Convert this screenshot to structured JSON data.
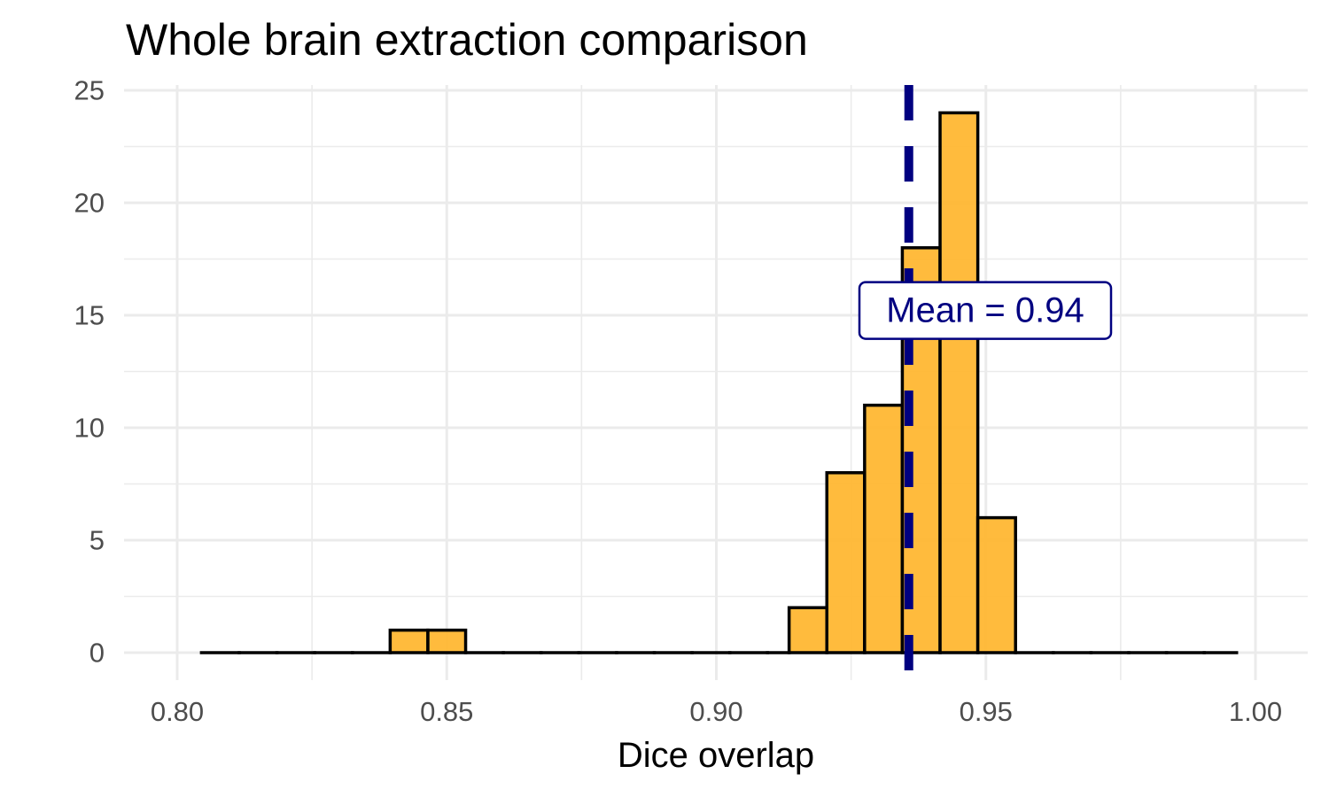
{
  "chart_data": {
    "type": "bar",
    "subtype": "histogram",
    "title": "Whole brain extraction comparison",
    "xlabel": "Dice overlap",
    "ylabel": "",
    "xlim": [
      0.8,
      1.0
    ],
    "ylim": [
      0,
      25
    ],
    "x_ticks": [
      0.8,
      0.85,
      0.9,
      0.95,
      1.0
    ],
    "x_tick_labels": [
      "0.80",
      "0.85",
      "0.90",
      "0.95",
      "1.00"
    ],
    "y_ticks": [
      0,
      5,
      10,
      15,
      20,
      25
    ],
    "y_tick_labels": [
      "0",
      "5",
      "10",
      "15",
      "20",
      "25"
    ],
    "bin_width": 0.007,
    "bins": [
      {
        "x0": 0.8045,
        "x1": 0.8115,
        "count": 0
      },
      {
        "x0": 0.8115,
        "x1": 0.8185,
        "count": 0
      },
      {
        "x0": 0.8185,
        "x1": 0.8255,
        "count": 0
      },
      {
        "x0": 0.8255,
        "x1": 0.8325,
        "count": 0
      },
      {
        "x0": 0.8325,
        "x1": 0.8395,
        "count": 0
      },
      {
        "x0": 0.8395,
        "x1": 0.8465,
        "count": 1
      },
      {
        "x0": 0.8465,
        "x1": 0.8535,
        "count": 1
      },
      {
        "x0": 0.8535,
        "x1": 0.8605,
        "count": 0
      },
      {
        "x0": 0.8605,
        "x1": 0.8675,
        "count": 0
      },
      {
        "x0": 0.8675,
        "x1": 0.8745,
        "count": 0
      },
      {
        "x0": 0.8745,
        "x1": 0.8815,
        "count": 0
      },
      {
        "x0": 0.8815,
        "x1": 0.8885,
        "count": 0
      },
      {
        "x0": 0.8885,
        "x1": 0.8955,
        "count": 0
      },
      {
        "x0": 0.8955,
        "x1": 0.9025,
        "count": 0
      },
      {
        "x0": 0.9025,
        "x1": 0.9095,
        "count": 0
      },
      {
        "x0": 0.9095,
        "x1": 0.9135,
        "count": 0
      },
      {
        "x0": 0.9135,
        "x1": 0.9205,
        "count": 2
      },
      {
        "x0": 0.9205,
        "x1": 0.9275,
        "count": 8
      },
      {
        "x0": 0.9275,
        "x1": 0.9345,
        "count": 11
      },
      {
        "x0": 0.9345,
        "x1": 0.9415,
        "count": 18
      },
      {
        "x0": 0.9415,
        "x1": 0.9485,
        "count": 24
      },
      {
        "x0": 0.9485,
        "x1": 0.9555,
        "count": 6
      },
      {
        "x0": 0.9555,
        "x1": 0.9625,
        "count": 0
      },
      {
        "x0": 0.9625,
        "x1": 0.9695,
        "count": 0
      },
      {
        "x0": 0.9695,
        "x1": 0.9765,
        "count": 0
      },
      {
        "x0": 0.9765,
        "x1": 0.9835,
        "count": 0
      },
      {
        "x0": 0.9835,
        "x1": 0.9905,
        "count": 0
      },
      {
        "x0": 0.9905,
        "x1": 0.9965,
        "count": 0
      }
    ],
    "mean_line": {
      "value": 0.9357,
      "label": "Mean = 0.94",
      "label_y": 16.0,
      "style": "dashed"
    },
    "grid": true,
    "legend": "none"
  },
  "colors": {
    "bar_fill": "#FFB733",
    "bar_outline": "#000000",
    "mean_line": "#000080",
    "grid": "#EBEBEB",
    "background": "#FFFFFF"
  }
}
